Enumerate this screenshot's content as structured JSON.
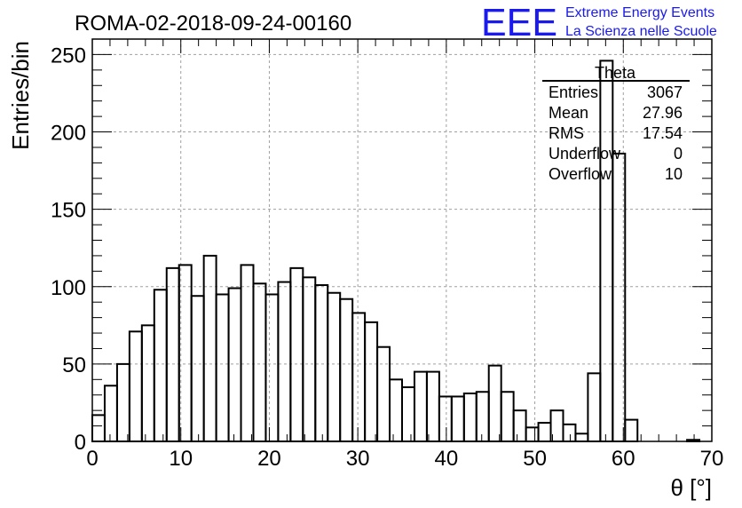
{
  "chart_data": {
    "type": "bar",
    "title": "ROMA-02-2018-09-24-00160",
    "xlabel": "θ [°]",
    "ylabel": "Entries/bin",
    "xlim": [
      0,
      70
    ],
    "ylim": [
      0,
      260
    ],
    "grid": true,
    "x_ticks": [
      "0",
      "10",
      "20",
      "30",
      "40",
      "50",
      "60",
      "70"
    ],
    "y_ticks": [
      "0",
      "50",
      "100",
      "150",
      "200",
      "250"
    ],
    "bin_width": 1.4,
    "values": [
      17,
      36,
      50,
      71,
      75,
      98,
      112,
      114,
      94,
      120,
      95,
      99,
      114,
      102,
      95,
      103,
      112,
      106,
      101,
      96,
      92,
      83,
      77,
      61,
      40,
      35,
      45,
      45,
      29,
      29,
      31,
      32,
      49,
      32,
      20,
      9,
      12,
      20,
      11,
      5,
      44,
      246,
      186,
      14,
      0,
      0,
      0,
      0,
      1,
      0
    ],
    "stats": {
      "name": "Theta",
      "rows": [
        {
          "label": "Entries",
          "value": "3067"
        },
        {
          "label": "Mean",
          "value": "27.96"
        },
        {
          "label": "RMS",
          "value": "17.54"
        },
        {
          "label": "Underflow",
          "value": "0"
        },
        {
          "label": "Overflow",
          "value": "10"
        }
      ]
    },
    "logo": {
      "letters": "EEE",
      "line1": "Extreme Energy Events",
      "line2": "La Scienza nelle Scuole",
      "color": "#1a1aee"
    }
  }
}
